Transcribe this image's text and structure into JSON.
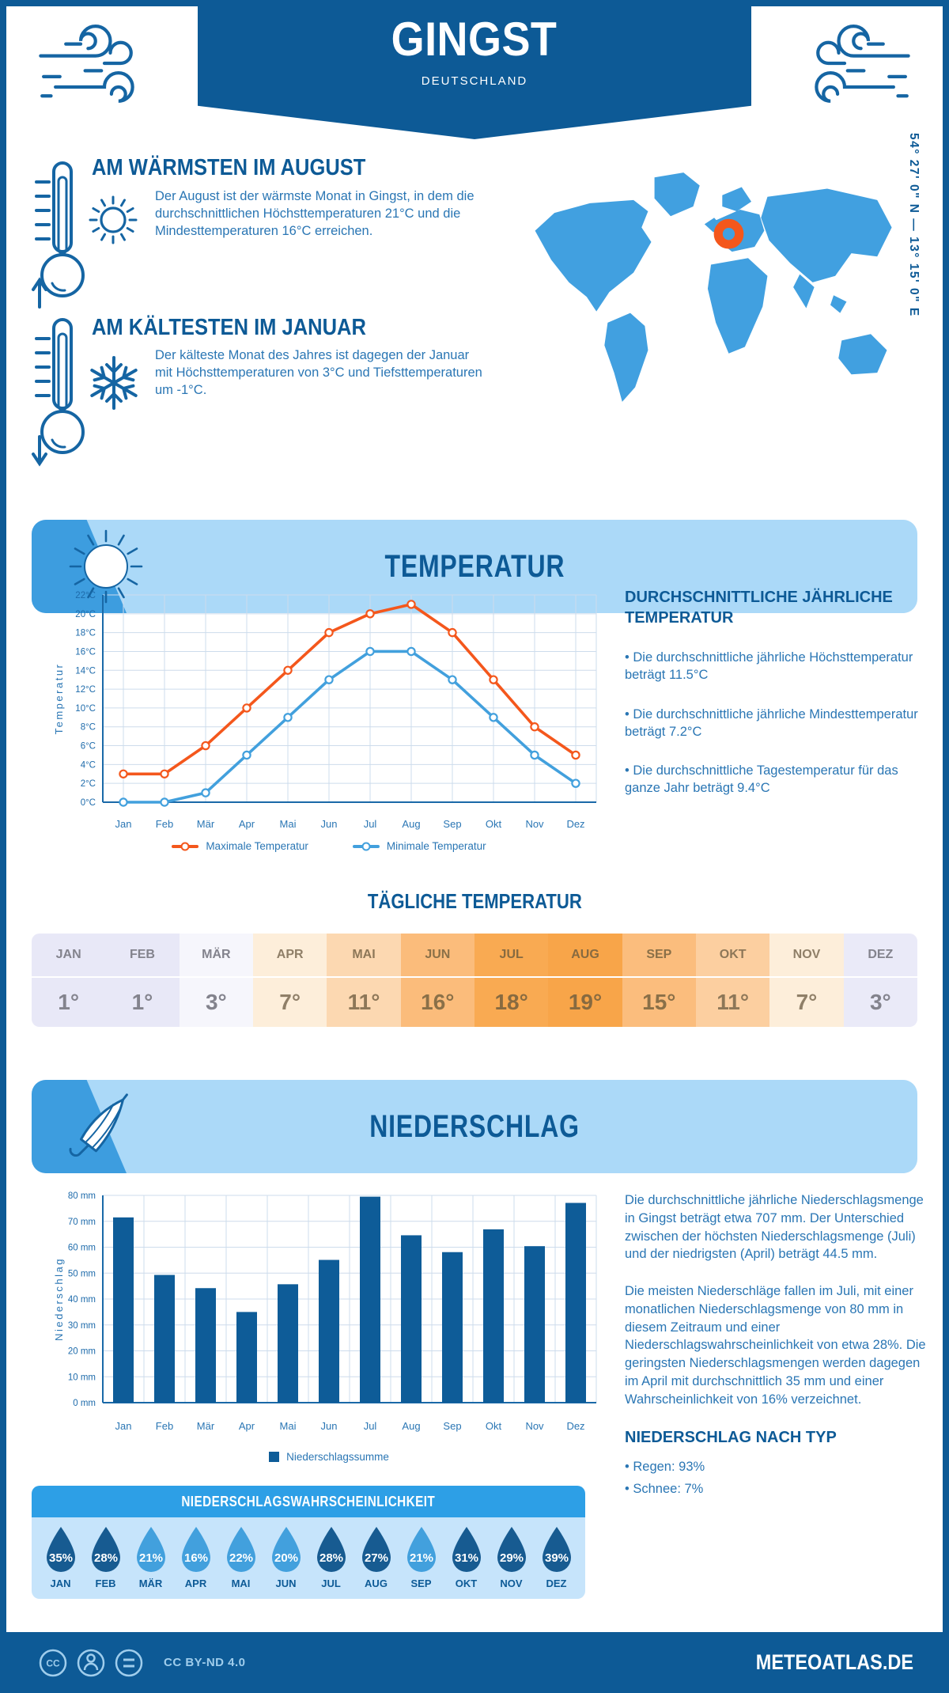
{
  "header": {
    "title": "GINGST",
    "subtitle": "DEUTSCHLAND",
    "coordinates": "54° 27' 0\" N — 13° 15' 0\" E"
  },
  "highlights": {
    "warmest": {
      "title": "AM WÄRMSTEN IM AUGUST",
      "text": "Der August ist der wärmste Monat in Gingst, in dem die durchschnittlichen Höchsttemperaturen 21°C und die Mindesttemperaturen 16°C erreichen."
    },
    "coldest": {
      "title": "AM KÄLTESTEN IM JANUAR",
      "text": "Der kälteste Monat des Jahres ist dagegen der Januar mit Höchsttemperaturen von 3°C und Tiefsttemperaturen um -1°C."
    }
  },
  "temperature": {
    "band_title": "TEMPERATUR",
    "annual_heading": "DURCHSCHNITTLICHE JÄHRLICHE TEMPERATUR",
    "annual_bullets": [
      "• Die durchschnittliche jährliche Höchsttemperatur beträgt 11.5°C",
      "• Die durchschnittliche jährliche Mindesttemperatur beträgt 7.2°C",
      "• Die durchschnittliche Tagestemperatur für das ganze Jahr beträgt 9.4°C"
    ],
    "daily_heading": "TÄGLICHE TEMPERATUR",
    "daily_months": [
      {
        "label": "JAN",
        "value": "1°",
        "bg": "#e8e8f7",
        "fg": "#83838d"
      },
      {
        "label": "FEB",
        "value": "1°",
        "bg": "#e8e8f7",
        "fg": "#83838d"
      },
      {
        "label": "MÄR",
        "value": "3°",
        "bg": "#f6f6fc",
        "fg": "#83838d"
      },
      {
        "label": "APR",
        "value": "7°",
        "bg": "#fdeeda",
        "fg": "#8f7f68"
      },
      {
        "label": "MAI",
        "value": "11°",
        "bg": "#fcd8b1",
        "fg": "#8d7758"
      },
      {
        "label": "JUN",
        "value": "16°",
        "bg": "#fbbc7b",
        "fg": "#8a7048"
      },
      {
        "label": "JUL",
        "value": "18°",
        "bg": "#f9aa52",
        "fg": "#876a40"
      },
      {
        "label": "AUG",
        "value": "19°",
        "bg": "#f8a549",
        "fg": "#876a40"
      },
      {
        "label": "SEP",
        "value": "15°",
        "bg": "#fbbd7d",
        "fg": "#8a7048"
      },
      {
        "label": "OKT",
        "value": "11°",
        "bg": "#fccfa0",
        "fg": "#8d7758"
      },
      {
        "label": "NOV",
        "value": "7°",
        "bg": "#fdeeda",
        "fg": "#8f7f68"
      },
      {
        "label": "DEZ",
        "value": "3°",
        "bg": "#eaeaf8",
        "fg": "#83838d"
      }
    ]
  },
  "precipitation": {
    "band_title": "NIEDERSCHLAG",
    "paragraphs": [
      "Die durchschnittliche jährliche Niederschlagsmenge in Gingst beträgt etwa 707 mm. Der Unterschied zwischen der höchsten Niederschlagsmenge (Juli) und der niedrigsten (April) beträgt 44.5 mm.",
      "Die meisten Niederschläge fallen im Juli, mit einer monatlichen Niederschlagsmenge von 80 mm in diesem Zeitraum und einer Niederschlagswahrscheinlichkeit von etwa 28%. Die geringsten Niederschlagsmengen werden dagegen im April mit durchschnittlich 35 mm und einer Wahrscheinlichkeit von 16% verzeichnet."
    ],
    "type_heading": "NIEDERSCHLAG NACH TYP",
    "type_bullets": [
      "• Regen: 93%",
      "• Schnee: 7%"
    ],
    "probability_heading": "NIEDERSCHLAGSWAHRSCHEINLICHKEIT",
    "probability_months": [
      {
        "label": "JAN",
        "value": "35%",
        "tone": "dark"
      },
      {
        "label": "FEB",
        "value": "28%",
        "tone": "dark"
      },
      {
        "label": "MÄR",
        "value": "21%",
        "tone": "light"
      },
      {
        "label": "APR",
        "value": "16%",
        "tone": "light"
      },
      {
        "label": "MAI",
        "value": "22%",
        "tone": "light"
      },
      {
        "label": "JUN",
        "value": "20%",
        "tone": "light"
      },
      {
        "label": "JUL",
        "value": "28%",
        "tone": "dark"
      },
      {
        "label": "AUG",
        "value": "27%",
        "tone": "dark"
      },
      {
        "label": "SEP",
        "value": "21%",
        "tone": "light"
      },
      {
        "label": "OKT",
        "value": "31%",
        "tone": "dark"
      },
      {
        "label": "NOV",
        "value": "29%",
        "tone": "dark"
      },
      {
        "label": "DEZ",
        "value": "39%",
        "tone": "dark"
      }
    ]
  },
  "footer": {
    "license": "CC BY-ND 4.0",
    "site": "METEOATLAS.DE"
  },
  "colors": {
    "primary_blue": "#0d5a96",
    "body_text_blue": "#2a76b4",
    "band_background": "#abd9f8",
    "band_wedge": "#3d9ddf",
    "map_blue": "#41a0e0",
    "marker_orange": "#f4571c",
    "line_max": "#f4571c",
    "line_min": "#42a0dd",
    "bar_blue": "#0e5c98",
    "grid": "#cddcec",
    "prob_header": "#2d9fe6",
    "prob_body": "#c6e4fb",
    "drop_dark": "#175b91",
    "drop_light": "#42a0dd"
  },
  "icons": {
    "header": "wind-icon",
    "warmest": [
      "thermometer-up-icon",
      "sun-icon"
    ],
    "coldest": [
      "thermometer-down-icon",
      "snowflake-icon"
    ],
    "temperature_band": "sun-icon",
    "precipitation_band": "umbrella-icon",
    "probability": "raindrop-icon",
    "location": "map-marker-icon",
    "footer": [
      "cc-icon",
      "person-icon",
      "equals-icon"
    ]
  },
  "chart_data": [
    {
      "type": "line",
      "ylabel": "Temperatur",
      "categories": [
        "Jan",
        "Feb",
        "Mär",
        "Apr",
        "Mai",
        "Jun",
        "Jul",
        "Aug",
        "Sep",
        "Okt",
        "Nov",
        "Dez"
      ],
      "series": [
        {
          "name": "Maximale Temperatur",
          "color": "#f4571c",
          "values": [
            3,
            3,
            6,
            10,
            14,
            18,
            20,
            21,
            18,
            13,
            8,
            5
          ]
        },
        {
          "name": "Minimale Temperatur",
          "color": "#42a0dd",
          "values": [
            0,
            0,
            1,
            5,
            9,
            13,
            16,
            16,
            13,
            9,
            5,
            2
          ]
        }
      ],
      "ylim": [
        0,
        22
      ],
      "ytick_step": 2,
      "ytick_suffix": "°C",
      "grid": true,
      "legend_position": "bottom"
    },
    {
      "type": "bar",
      "ylabel": "Niederschlag",
      "categories": [
        "Jan",
        "Feb",
        "Mär",
        "Apr",
        "Mai",
        "Jun",
        "Jul",
        "Aug",
        "Sep",
        "Okt",
        "Nov",
        "Dez"
      ],
      "series": [
        {
          "name": "Niederschlagssumme",
          "color": "#0e5c98",
          "values": [
            71.5,
            49.3,
            44.2,
            35,
            45.7,
            55.1,
            79.5,
            64.6,
            58.1,
            66.9,
            60.4,
            77.1
          ]
        }
      ],
      "ylim": [
        0,
        80
      ],
      "ytick_step": 10,
      "ytick_suffix": " mm",
      "grid": true,
      "legend_position": "bottom"
    }
  ]
}
